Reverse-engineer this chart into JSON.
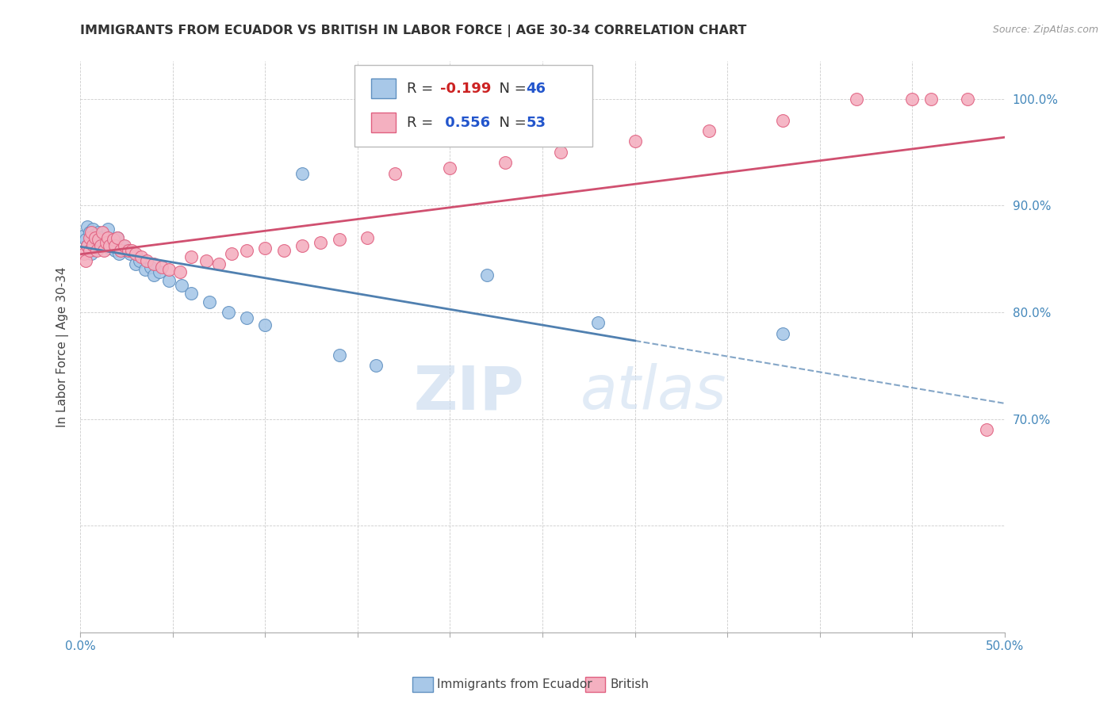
{
  "title": "IMMIGRANTS FROM ECUADOR VS BRITISH IN LABOR FORCE | AGE 30-34 CORRELATION CHART",
  "source": "Source: ZipAtlas.com",
  "ylabel": "In Labor Force | Age 30-34",
  "xlim": [
    0.0,
    0.5
  ],
  "ylim": [
    0.5,
    1.035
  ],
  "xticks": [
    0.0,
    0.05,
    0.1,
    0.15,
    0.2,
    0.25,
    0.3,
    0.35,
    0.4,
    0.45,
    0.5
  ],
  "yticks": [
    0.5,
    0.6,
    0.7,
    0.8,
    0.9,
    1.0
  ],
  "xticklabels": [
    "0.0%",
    "",
    "",
    "",
    "",
    "",
    "",
    "",
    "",
    "",
    "50.0%"
  ],
  "yticklabels": [
    "",
    "",
    "70.0%",
    "80.0%",
    "90.0%",
    "100.0%"
  ],
  "blue_color": "#a8c8e8",
  "pink_color": "#f4b0c0",
  "blue_edge": "#6090c0",
  "pink_edge": "#e06080",
  "blue_line": "#5080b0",
  "pink_line": "#d05070",
  "ecuador_x": [
    0.002,
    0.003,
    0.004,
    0.004,
    0.005,
    0.005,
    0.006,
    0.006,
    0.007,
    0.007,
    0.008,
    0.009,
    0.01,
    0.01,
    0.011,
    0.012,
    0.013,
    0.014,
    0.015,
    0.016,
    0.018,
    0.019,
    0.02,
    0.021,
    0.023,
    0.025,
    0.027,
    0.03,
    0.032,
    0.035,
    0.038,
    0.04,
    0.043,
    0.048,
    0.055,
    0.06,
    0.07,
    0.08,
    0.09,
    0.1,
    0.12,
    0.14,
    0.16,
    0.22,
    0.28,
    0.38
  ],
  "ecuador_y": [
    0.872,
    0.868,
    0.88,
    0.862,
    0.875,
    0.858,
    0.87,
    0.855,
    0.878,
    0.863,
    0.873,
    0.866,
    0.875,
    0.86,
    0.87,
    0.865,
    0.868,
    0.862,
    0.878,
    0.86,
    0.865,
    0.858,
    0.87,
    0.855,
    0.862,
    0.858,
    0.855,
    0.845,
    0.848,
    0.84,
    0.842,
    0.835,
    0.838,
    0.83,
    0.825,
    0.818,
    0.81,
    0.8,
    0.795,
    0.788,
    0.93,
    0.76,
    0.75,
    0.835,
    0.79,
    0.78
  ],
  "british_x": [
    0.002,
    0.003,
    0.004,
    0.005,
    0.005,
    0.006,
    0.007,
    0.008,
    0.009,
    0.01,
    0.011,
    0.012,
    0.013,
    0.014,
    0.015,
    0.016,
    0.018,
    0.019,
    0.02,
    0.022,
    0.024,
    0.026,
    0.028,
    0.03,
    0.033,
    0.036,
    0.04,
    0.044,
    0.048,
    0.054,
    0.06,
    0.068,
    0.075,
    0.082,
    0.09,
    0.1,
    0.11,
    0.12,
    0.13,
    0.14,
    0.155,
    0.17,
    0.2,
    0.23,
    0.26,
    0.3,
    0.34,
    0.38,
    0.42,
    0.45,
    0.46,
    0.48,
    0.49
  ],
  "british_y": [
    0.855,
    0.848,
    0.862,
    0.87,
    0.858,
    0.875,
    0.863,
    0.87,
    0.858,
    0.868,
    0.862,
    0.875,
    0.858,
    0.865,
    0.87,
    0.862,
    0.868,
    0.862,
    0.87,
    0.858,
    0.862,
    0.858,
    0.858,
    0.855,
    0.852,
    0.848,
    0.845,
    0.842,
    0.84,
    0.838,
    0.852,
    0.848,
    0.845,
    0.855,
    0.858,
    0.86,
    0.858,
    0.862,
    0.865,
    0.868,
    0.87,
    0.93,
    0.935,
    0.94,
    0.95,
    0.96,
    0.97,
    0.98,
    1.0,
    1.0,
    1.0,
    1.0,
    0.69
  ]
}
